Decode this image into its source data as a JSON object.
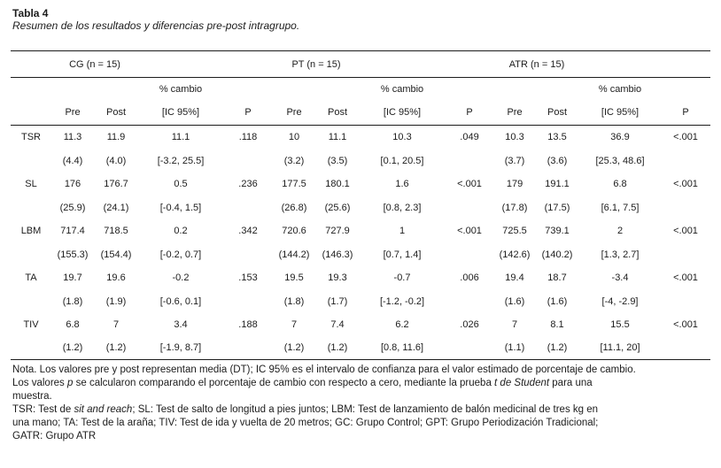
{
  "title": "Tabla 4",
  "subtitle": "Resumen de los resultados y diferencias pre-post intragrupo.",
  "table": {
    "groups": [
      {
        "label": "CG (n = 15)"
      },
      {
        "label": "PT (n = 15)"
      },
      {
        "label": "ATR (n = 15)"
      }
    ],
    "pct_change_label": "% cambio",
    "col_headers": [
      "Pre",
      "Post",
      "[IC 95%]",
      "P"
    ],
    "rows": [
      {
        "label": "TSR",
        "values": [
          "11.3",
          "11.9",
          "11.1",
          ".118",
          "10",
          "11.1",
          "10.3",
          ".049",
          "10.3",
          "13.5",
          "36.9",
          "<.001"
        ],
        "sd": [
          "(4.4)",
          "(4.0)",
          "[-3.2, 25.5]",
          "",
          "(3.2)",
          "(3.5)",
          "[0.1, 20.5]",
          "",
          "(3.7)",
          "(3.6)",
          "[25.3, 48.6]",
          ""
        ]
      },
      {
        "label": "SL",
        "values": [
          "176",
          "176.7",
          "0.5",
          ".236",
          "177.5",
          "180.1",
          "1.6",
          "<.001",
          "179",
          "191.1",
          "6.8",
          "<.001"
        ],
        "sd": [
          "(25.9)",
          "(24.1)",
          "[-0.4, 1.5]",
          "",
          "(26.8)",
          "(25.6)",
          "[0.8, 2.3]",
          "",
          "(17.8)",
          "(17.5)",
          "[6.1, 7.5]",
          ""
        ]
      },
      {
        "label": "LBM",
        "values": [
          "717.4",
          "718.5",
          "0.2",
          ".342",
          "720.6",
          "727.9",
          "1",
          "<.001",
          "725.5",
          "739.1",
          "2",
          "<.001"
        ],
        "sd": [
          "(155.3)",
          "(154.4)",
          "[-0.2, 0.7]",
          "",
          "(144.2)",
          "(146.3)",
          "[0.7, 1.4]",
          "",
          "(142.6)",
          "(140.2)",
          "[1.3, 2.7]",
          ""
        ]
      },
      {
        "label": "TA",
        "values": [
          "19.7",
          "19.6",
          "-0.2",
          ".153",
          "19.5",
          "19.3",
          "-0.7",
          ".006",
          "19.4",
          "18.7",
          "-3.4",
          "<.001"
        ],
        "sd": [
          "(1.8)",
          "(1.9)",
          "[-0.6, 0.1]",
          "",
          "(1.8)",
          "(1.7)",
          "[-1.2, -0.2]",
          "",
          "(1.6)",
          "(1.6)",
          "[-4, -2.9]",
          ""
        ]
      },
      {
        "label": "TIV",
        "values": [
          "6.8",
          "7",
          "3.4",
          ".188",
          "7",
          "7.4",
          "6.2",
          ".026",
          "7",
          "8.1",
          "15.5",
          "<.001"
        ],
        "sd": [
          "(1.2)",
          "(1.2)",
          "[-1.9, 8.7]",
          "",
          "(1.2)",
          "(1.2)",
          "[0.8, 11.6]",
          "",
          "(1.1)",
          "(1.2)",
          "[11.1, 20]",
          ""
        ]
      }
    ]
  },
  "note": {
    "lines": [
      [
        {
          "t": "Nota. Los valores pre y post representan media (DT); IC 95% es el intervalo de confianza para el valor estimado de porcentaje de cambio."
        }
      ],
      [
        {
          "t": "Los valores "
        },
        {
          "t": "p",
          "i": true
        },
        {
          "t": " se calcularon comparando el porcentaje de cambio con respecto a cero, mediante la prueba "
        },
        {
          "t": "t de Student",
          "i": true
        },
        {
          "t": " para una"
        }
      ],
      [
        {
          "t": "muestra."
        }
      ],
      [
        {
          "t": "TSR: Test de "
        },
        {
          "t": "sit and reach",
          "i": true
        },
        {
          "t": "; SL: Test de salto de longitud a pies juntos; LBM: Test de lanzamiento de balón medicinal de tres kg en"
        }
      ],
      [
        {
          "t": "una mano; TA: Test de la araña; TIV: Test de ida y vuelta de 20 metros; GC: Grupo Control; GPT: Grupo Periodización Tradicional;"
        }
      ],
      [
        {
          "t": "GATR: Grupo ATR"
        }
      ]
    ]
  }
}
